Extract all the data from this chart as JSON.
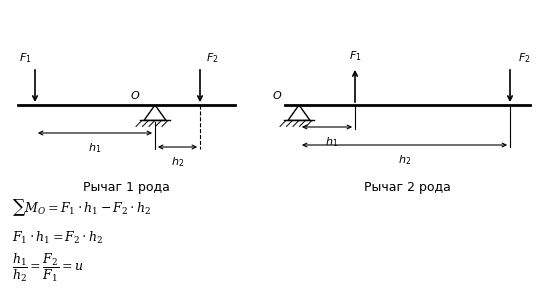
{
  "bg_color": "#ffffff",
  "line_color": "#000000",
  "fig_width": 5.42,
  "fig_height": 2.96,
  "dpi": 100,
  "label_roda1": "Рычаг 1 рода",
  "label_roda2": "Рычаг 2 рода"
}
